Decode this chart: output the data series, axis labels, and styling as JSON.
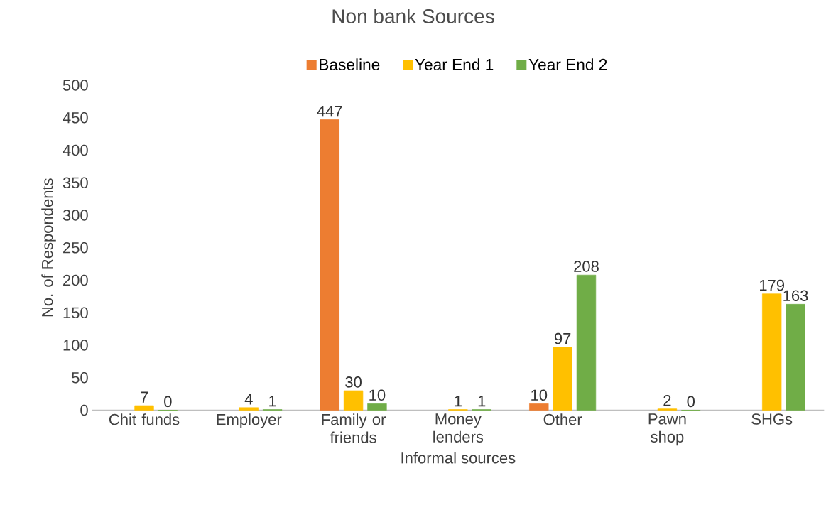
{
  "chart_data": {
    "type": "bar",
    "title": "Non bank Sources",
    "xlabel": "Informal sources",
    "ylabel": "No. of Respondents",
    "categories": [
      "Chit funds",
      "Employer",
      "Family or friends",
      "Money lenders",
      "Other",
      "Pawn shop",
      "SHGs"
    ],
    "series": [
      {
        "name": "Baseline",
        "color": "#ed7d31",
        "values": [
          null,
          null,
          447,
          null,
          10,
          null,
          null
        ]
      },
      {
        "name": "Year End 1",
        "color": "#ffc000",
        "values": [
          7,
          4,
          30,
          1,
          97,
          2,
          179
        ]
      },
      {
        "name": "Year End 2",
        "color": "#70ad47",
        "values": [
          0,
          1,
          10,
          1,
          208,
          0,
          163
        ]
      }
    ],
    "ylim": [
      0,
      500
    ],
    "yticks": [
      0,
      50,
      100,
      150,
      200,
      250,
      300,
      350,
      400,
      450,
      500
    ],
    "data_labels": true,
    "legend": "top",
    "grid": false
  }
}
